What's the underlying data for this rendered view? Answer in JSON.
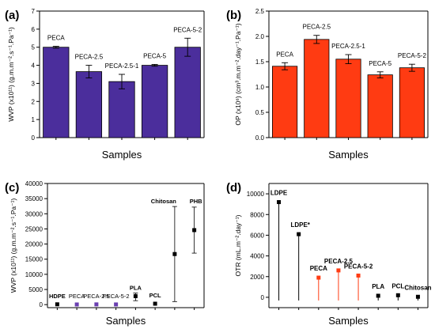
{
  "chart_data": [
    {
      "panel_label": "(a)",
      "type": "bar",
      "categories": [
        "PECA",
        "PECA-2.5",
        "PECA-2.5-1",
        "PECA-5",
        "PECA-5-2"
      ],
      "values": [
        5.0,
        3.65,
        3.1,
        4.0,
        5.0
      ],
      "errors": [
        0.05,
        0.35,
        0.4,
        0.05,
        0.5
      ],
      "xlabel": "Samples",
      "ylabel": "WVP (x10¹¹) (g.m.m⁻².s⁻¹.Pa⁻¹)",
      "ylim": [
        0,
        7
      ],
      "yticks": [
        "0",
        "1",
        "2",
        "3",
        "4",
        "5",
        "6",
        "7"
      ],
      "ytick_values": [
        0,
        1,
        2,
        3,
        4,
        5,
        6,
        7
      ],
      "bar_color": "#4b2e9c"
    },
    {
      "panel_label": "(b)",
      "type": "bar",
      "categories": [
        "PECA",
        "PECA-2.5",
        "PECA-2.5-1",
        "PECA-5",
        "PECA-5-2"
      ],
      "values": [
        1.41,
        1.94,
        1.55,
        1.24,
        1.38
      ],
      "errors": [
        0.07,
        0.08,
        0.09,
        0.06,
        0.07
      ],
      "xlabel": "Samples",
      "ylabel": "OP (x10⁶) (cm³.m.m⁻².day⁻¹.Pa⁻¹)",
      "ylim": [
        0,
        2.5
      ],
      "yticks": [
        "0.0",
        "0.5",
        "1.0",
        "1.5",
        "2.0",
        "2.5"
      ],
      "ytick_values": [
        0,
        0.5,
        1.0,
        1.5,
        2.0,
        2.5
      ],
      "bar_color": "#ff3b12"
    },
    {
      "panel_label": "(c)",
      "type": "scatter",
      "categories": [
        "HDPE",
        "PECA",
        "PECA-2.5",
        "PECA-5-2",
        "PLA",
        "PCL",
        "Chitosan",
        "PHB"
      ],
      "values": [
        100,
        50,
        80,
        60,
        2800,
        300,
        16700,
        24600
      ],
      "err_low": [
        0,
        0,
        0,
        0,
        1500,
        0,
        15700,
        7600
      ],
      "err_high": [
        0,
        0,
        0,
        0,
        1000,
        0,
        15700,
        7600
      ],
      "label_colors": [
        "#000000",
        "#6a3fb0",
        "#6a3fb0",
        "#6a3fb0",
        "#000000",
        "#000000",
        "#000000",
        "#000000"
      ],
      "xlabel": "Samples",
      "ylabel": "WVP (x10¹¹) (g.m.m⁻².s⁻¹.Pa⁻¹)",
      "ylim": [
        -1000,
        40000
      ],
      "yticks": [
        "0",
        "5000",
        "10000",
        "15000",
        "20000",
        "25000",
        "30000",
        "35000",
        "40000"
      ],
      "ytick_values": [
        0,
        5000,
        10000,
        15000,
        20000,
        25000,
        30000,
        35000,
        40000
      ]
    },
    {
      "panel_label": "(d)",
      "type": "scatter",
      "categories": [
        "LDPE",
        "LDPE*",
        "PECA",
        "PECA-2.5",
        "PECA-5-2",
        "PLA",
        "PCL",
        "Chitosan"
      ],
      "values": [
        9200,
        6100,
        1900,
        2600,
        2100,
        150,
        200,
        50
      ],
      "label_colors": [
        "#000000",
        "#000000",
        "#ff3b12",
        "#ff3b12",
        "#ff3b12",
        "#000000",
        "#000000",
        "#000000"
      ],
      "xlabel": "Samples",
      "ylabel": "OTR (mL.m⁻².day⁻¹)",
      "ylim": [
        -1000,
        11000
      ],
      "yticks": [
        "0",
        "2000",
        "4000",
        "6000",
        "8000",
        "10000"
      ],
      "ytick_values": [
        0,
        2000,
        4000,
        6000,
        8000,
        10000
      ]
    }
  ]
}
